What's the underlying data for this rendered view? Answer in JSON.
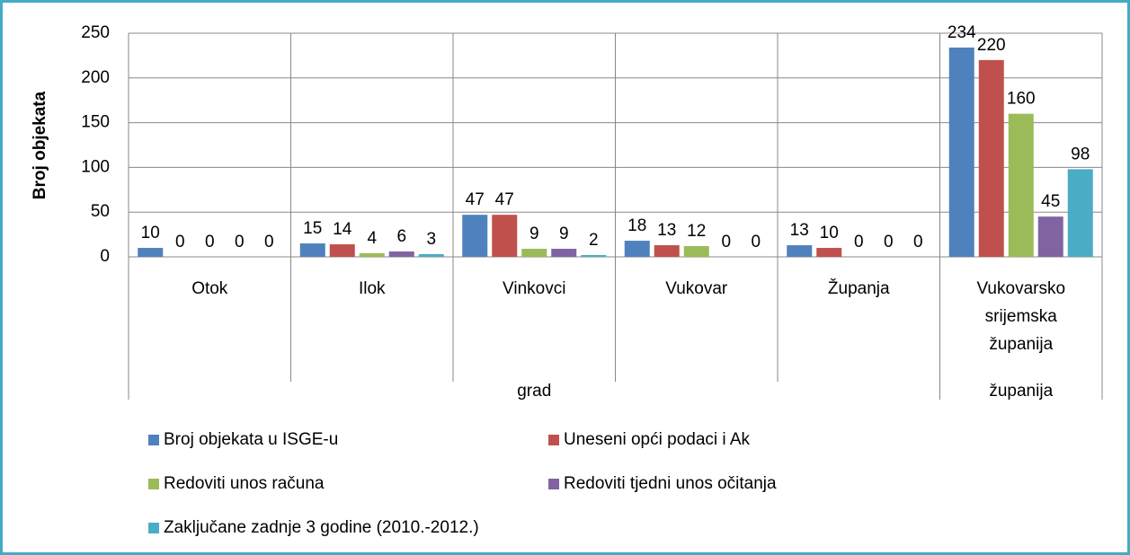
{
  "chart_data": {
    "type": "bar",
    "y_axis_label": "Broj objekata",
    "categories": [
      "Otok",
      "Ilok",
      "Vinkovci",
      "Vukovar",
      "Županja",
      "Vukovarsko srijemska županija"
    ],
    "groups": [
      {
        "label": "grad",
        "count": 5
      },
      {
        "label": "županija",
        "count": 1
      }
    ],
    "series": [
      {
        "name": "Broj objekata u ISGE-u",
        "color": "#4f81bd",
        "values": [
          10,
          15,
          47,
          18,
          13,
          234
        ]
      },
      {
        "name": "Uneseni opći podaci i Ak",
        "color": "#c0504d",
        "values": [
          0,
          14,
          47,
          13,
          10,
          220
        ]
      },
      {
        "name": "Redoviti unos računa",
        "color": "#9bbb59",
        "values": [
          0,
          4,
          9,
          12,
          0,
          160
        ]
      },
      {
        "name": "Redoviti tjedni unos očitanja",
        "color": "#8064a2",
        "values": [
          0,
          6,
          9,
          0,
          0,
          45
        ]
      },
      {
        "name": "Zaključane zadnje 3 godine (2010.-2012.)",
        "color": "#4bacc6",
        "values": [
          0,
          3,
          2,
          0,
          0,
          98
        ]
      }
    ],
    "ylim": [
      0,
      250
    ],
    "yticks": [
      0,
      50,
      100,
      150,
      200,
      250
    ],
    "grid": true,
    "legend": "bottom"
  }
}
